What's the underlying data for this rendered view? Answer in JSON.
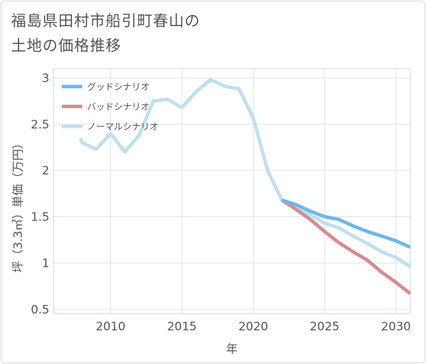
{
  "title": "福島県田村市船引町春山の\n土地の価格推移",
  "chart_data": {
    "type": "line",
    "xlabel": "年",
    "ylabel": "坪（3.3㎡）単価（万円）",
    "xlim": [
      2006,
      2031
    ],
    "ylim": [
      0.45,
      3.1
    ],
    "x_ticks": [
      2010,
      2015,
      2020,
      2025,
      2030
    ],
    "y_ticks": [
      0.5,
      1,
      1.5,
      2,
      2.5,
      3
    ],
    "grid": true,
    "legend_position": "top-left",
    "series": [
      {
        "name": "グッドシナリオ",
        "color": "#6cb8ea",
        "x": [
          2022,
          2023,
          2024,
          2025,
          2026,
          2027,
          2028,
          2029,
          2030,
          2031
        ],
        "y": [
          1.68,
          1.63,
          1.56,
          1.5,
          1.47,
          1.4,
          1.34,
          1.29,
          1.24,
          1.17
        ]
      },
      {
        "name": "バッドシナリオ",
        "color": "#d88a8d",
        "x": [
          2022,
          2023,
          2024,
          2025,
          2026,
          2027,
          2028,
          2029,
          2030,
          2031
        ],
        "y": [
          1.68,
          1.58,
          1.47,
          1.34,
          1.22,
          1.12,
          1.03,
          0.9,
          0.79,
          0.67
        ]
      },
      {
        "name": "ノーマルシナリオ",
        "color": "#bfdfee",
        "x": [
          2007.9,
          2008,
          2009,
          2010,
          2011,
          2012,
          2013,
          2014,
          2015,
          2016,
          2017,
          2018,
          2019,
          2020,
          2021,
          2022,
          2023,
          2024,
          2025,
          2026,
          2027,
          2028,
          2029,
          2030,
          2031
        ],
        "y": [
          2.35,
          2.3,
          2.23,
          2.4,
          2.2,
          2.38,
          2.75,
          2.77,
          2.68,
          2.85,
          2.98,
          2.91,
          2.88,
          2.57,
          2.0,
          1.68,
          1.6,
          1.52,
          1.43,
          1.38,
          1.29,
          1.21,
          1.12,
          1.06,
          0.96
        ]
      }
    ]
  }
}
